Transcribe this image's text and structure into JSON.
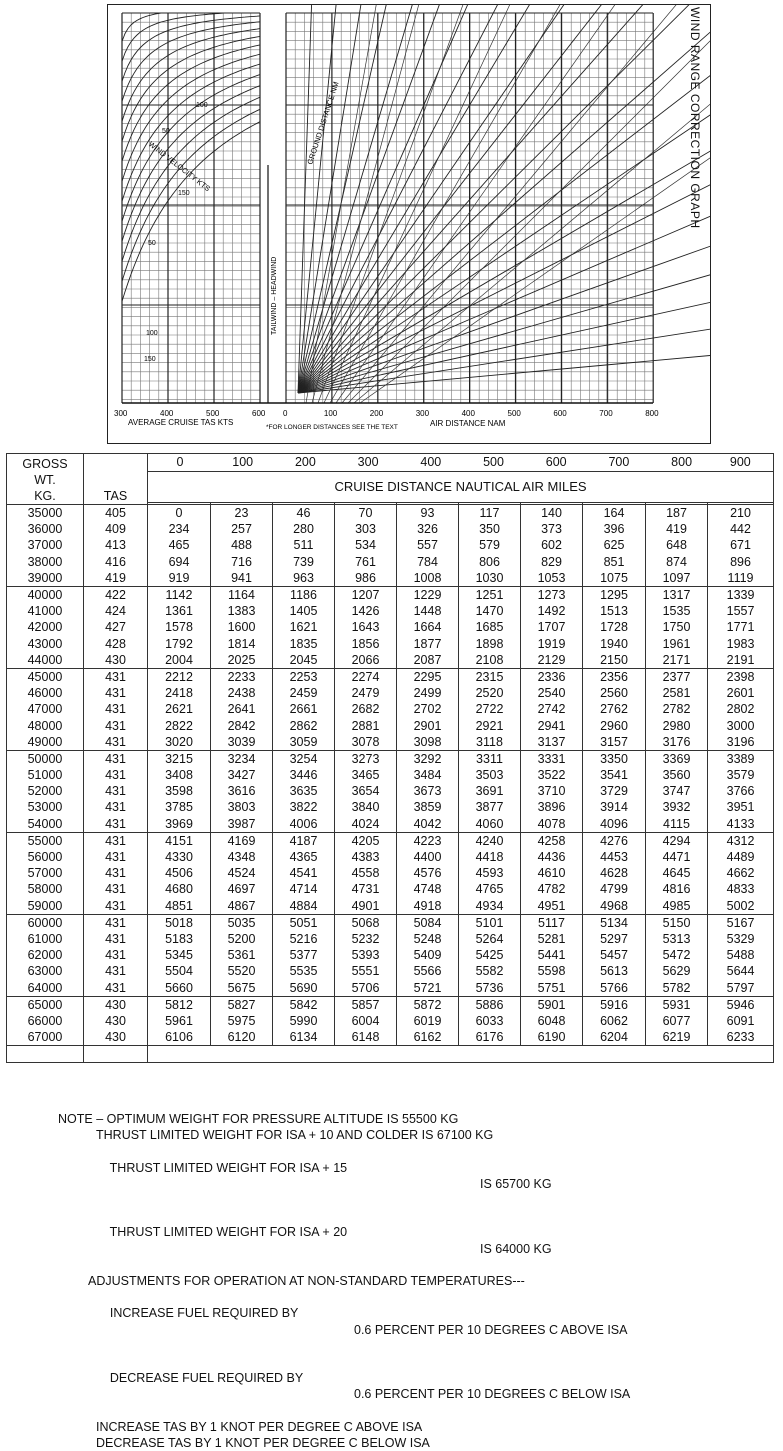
{
  "graph": {
    "title": "WIND RANGE CORRECTION GRAPH",
    "left_axis_ticks": [
      "300",
      "400",
      "500",
      "600"
    ],
    "left_axis_label": "AVERAGE CRUISE TAS   KTS",
    "right_axis_ticks": [
      "0",
      "100",
      "200",
      "300",
      "400",
      "500",
      "600",
      "700",
      "800"
    ],
    "right_axis_label": "AIR DISTANCE   NAM",
    "footnote": "*FOR LONGER DISTANCES SEE THE TEXT",
    "wind_label": "WIND VELOCITY   KTS",
    "tailwind_label": "TAILWIND – HEADWIND",
    "ground_label": "GROUND DISTANCE   NM",
    "wind_values": [
      "100",
      "50",
      "150",
      "50",
      "100",
      "150"
    ]
  },
  "table": {
    "gross_header": [
      "GROSS",
      "WT.",
      "KG."
    ],
    "tas_header": "TAS",
    "distance_header": "CRUISE DISTANCE NAUTICAL AIR MILES",
    "distance_ticks": [
      "0",
      "100",
      "200",
      "300",
      "400",
      "500",
      "600",
      "700",
      "800",
      "900"
    ],
    "blocks": [
      [
        {
          "wt": "35000",
          "tas": "405",
          "d": [
            "0",
            "23",
            "46",
            "70",
            "93",
            "117",
            "140",
            "164",
            "187",
            "210"
          ]
        },
        {
          "wt": "36000",
          "tas": "409",
          "d": [
            "234",
            "257",
            "280",
            "303",
            "326",
            "350",
            "373",
            "396",
            "419",
            "442"
          ]
        },
        {
          "wt": "37000",
          "tas": "413",
          "d": [
            "465",
            "488",
            "511",
            "534",
            "557",
            "579",
            "602",
            "625",
            "648",
            "671"
          ]
        },
        {
          "wt": "38000",
          "tas": "416",
          "d": [
            "694",
            "716",
            "739",
            "761",
            "784",
            "806",
            "829",
            "851",
            "874",
            "896"
          ]
        },
        {
          "wt": "39000",
          "tas": "419",
          "d": [
            "919",
            "941",
            "963",
            "986",
            "1008",
            "1030",
            "1053",
            "1075",
            "1097",
            "1119"
          ]
        }
      ],
      [
        {
          "wt": "40000",
          "tas": "422",
          "d": [
            "1142",
            "1164",
            "1186",
            "1207",
            "1229",
            "1251",
            "1273",
            "1295",
            "1317",
            "1339"
          ]
        },
        {
          "wt": "41000",
          "tas": "424",
          "d": [
            "1361",
            "1383",
            "1405",
            "1426",
            "1448",
            "1470",
            "1492",
            "1513",
            "1535",
            "1557"
          ]
        },
        {
          "wt": "42000",
          "tas": "427",
          "d": [
            "1578",
            "1600",
            "1621",
            "1643",
            "1664",
            "1685",
            "1707",
            "1728",
            "1750",
            "1771"
          ]
        },
        {
          "wt": "43000",
          "tas": "428",
          "d": [
            "1792",
            "1814",
            "1835",
            "1856",
            "1877",
            "1898",
            "1919",
            "1940",
            "1961",
            "1983"
          ]
        },
        {
          "wt": "44000",
          "tas": "430",
          "d": [
            "2004",
            "2025",
            "2045",
            "2066",
            "2087",
            "2108",
            "2129",
            "2150",
            "2171",
            "2191"
          ]
        }
      ],
      [
        {
          "wt": "45000",
          "tas": "431",
          "d": [
            "2212",
            "2233",
            "2253",
            "2274",
            "2295",
            "2315",
            "2336",
            "2356",
            "2377",
            "2398"
          ]
        },
        {
          "wt": "46000",
          "tas": "431",
          "d": [
            "2418",
            "2438",
            "2459",
            "2479",
            "2499",
            "2520",
            "2540",
            "2560",
            "2581",
            "2601"
          ]
        },
        {
          "wt": "47000",
          "tas": "431",
          "d": [
            "2621",
            "2641",
            "2661",
            "2682",
            "2702",
            "2722",
            "2742",
            "2762",
            "2782",
            "2802"
          ]
        },
        {
          "wt": "48000",
          "tas": "431",
          "d": [
            "2822",
            "2842",
            "2862",
            "2881",
            "2901",
            "2921",
            "2941",
            "2960",
            "2980",
            "3000"
          ]
        },
        {
          "wt": "49000",
          "tas": "431",
          "d": [
            "3020",
            "3039",
            "3059",
            "3078",
            "3098",
            "3118",
            "3137",
            "3157",
            "3176",
            "3196"
          ]
        }
      ],
      [
        {
          "wt": "50000",
          "tas": "431",
          "d": [
            "3215",
            "3234",
            "3254",
            "3273",
            "3292",
            "3311",
            "3331",
            "3350",
            "3369",
            "3389"
          ]
        },
        {
          "wt": "51000",
          "tas": "431",
          "d": [
            "3408",
            "3427",
            "3446",
            "3465",
            "3484",
            "3503",
            "3522",
            "3541",
            "3560",
            "3579"
          ]
        },
        {
          "wt": "52000",
          "tas": "431",
          "d": [
            "3598",
            "3616",
            "3635",
            "3654",
            "3673",
            "3691",
            "3710",
            "3729",
            "3747",
            "3766"
          ]
        },
        {
          "wt": "53000",
          "tas": "431",
          "d": [
            "3785",
            "3803",
            "3822",
            "3840",
            "3859",
            "3877",
            "3896",
            "3914",
            "3932",
            "3951"
          ]
        },
        {
          "wt": "54000",
          "tas": "431",
          "d": [
            "3969",
            "3987",
            "4006",
            "4024",
            "4042",
            "4060",
            "4078",
            "4096",
            "4115",
            "4133"
          ]
        }
      ],
      [
        {
          "wt": "55000",
          "tas": "431",
          "d": [
            "4151",
            "4169",
            "4187",
            "4205",
            "4223",
            "4240",
            "4258",
            "4276",
            "4294",
            "4312"
          ]
        },
        {
          "wt": "56000",
          "tas": "431",
          "d": [
            "4330",
            "4348",
            "4365",
            "4383",
            "4400",
            "4418",
            "4436",
            "4453",
            "4471",
            "4489"
          ]
        },
        {
          "wt": "57000",
          "tas": "431",
          "d": [
            "4506",
            "4524",
            "4541",
            "4558",
            "4576",
            "4593",
            "4610",
            "4628",
            "4645",
            "4662"
          ]
        },
        {
          "wt": "58000",
          "tas": "431",
          "d": [
            "4680",
            "4697",
            "4714",
            "4731",
            "4748",
            "4765",
            "4782",
            "4799",
            "4816",
            "4833"
          ]
        },
        {
          "wt": "59000",
          "tas": "431",
          "d": [
            "4851",
            "4867",
            "4884",
            "4901",
            "4918",
            "4934",
            "4951",
            "4968",
            "4985",
            "5002"
          ]
        }
      ],
      [
        {
          "wt": "60000",
          "tas": "431",
          "d": [
            "5018",
            "5035",
            "5051",
            "5068",
            "5084",
            "5101",
            "5117",
            "5134",
            "5150",
            "5167"
          ]
        },
        {
          "wt": "61000",
          "tas": "431",
          "d": [
            "5183",
            "5200",
            "5216",
            "5232",
            "5248",
            "5264",
            "5281",
            "5297",
            "5313",
            "5329"
          ]
        },
        {
          "wt": "62000",
          "tas": "431",
          "d": [
            "5345",
            "5361",
            "5377",
            "5393",
            "5409",
            "5425",
            "5441",
            "5457",
            "5472",
            "5488"
          ]
        },
        {
          "wt": "63000",
          "tas": "431",
          "d": [
            "5504",
            "5520",
            "5535",
            "5551",
            "5566",
            "5582",
            "5598",
            "5613",
            "5629",
            "5644"
          ]
        },
        {
          "wt": "64000",
          "tas": "431",
          "d": [
            "5660",
            "5675",
            "5690",
            "5706",
            "5721",
            "5736",
            "5751",
            "5766",
            "5782",
            "5797"
          ]
        }
      ],
      [
        {
          "wt": "65000",
          "tas": "430",
          "d": [
            "5812",
            "5827",
            "5842",
            "5857",
            "5872",
            "5886",
            "5901",
            "5916",
            "5931",
            "5946"
          ]
        },
        {
          "wt": "66000",
          "tas": "430",
          "d": [
            "5961",
            "5975",
            "5990",
            "6004",
            "6019",
            "6033",
            "6048",
            "6062",
            "6077",
            "6091"
          ]
        },
        {
          "wt": "67000",
          "tas": "430",
          "d": [
            "6106",
            "6120",
            "6134",
            "6148",
            "6162",
            "6176",
            "6190",
            "6204",
            "6219",
            "6233"
          ]
        }
      ]
    ]
  },
  "notes": {
    "l1": "NOTE – OPTIMUM WEIGHT FOR PRESSURE ALTITUDE IS 55500 KG",
    "l2a": "THRUST LIMITED WEIGHT FOR ISA + 10 AND COLDER IS 67100 KG",
    "l3a": "THRUST LIMITED WEIGHT FOR ISA + 15",
    "l3b": "IS 65700 KG",
    "l4a": "THRUST LIMITED WEIGHT FOR ISA + 20",
    "l4b": "IS 64000 KG",
    "l5": "ADJUSTMENTS FOR OPERATION AT NON-STANDARD TEMPERATURES---",
    "l6a": "INCREASE FUEL REQUIRED BY",
    "l6b": "0.6 PERCENT PER 10 DEGREES C ABOVE ISA",
    "l7a": "DECREASE FUEL REQUIRED BY",
    "l7b": "0.6 PERCENT PER 10 DEGREES C BELOW ISA",
    "l8": "INCREASE TAS BY 1 KNOT PER DEGREE C ABOVE ISA",
    "l9": "DECREASE TAS BY 1 KNOT PER DEGREE C BELOW ISA"
  }
}
